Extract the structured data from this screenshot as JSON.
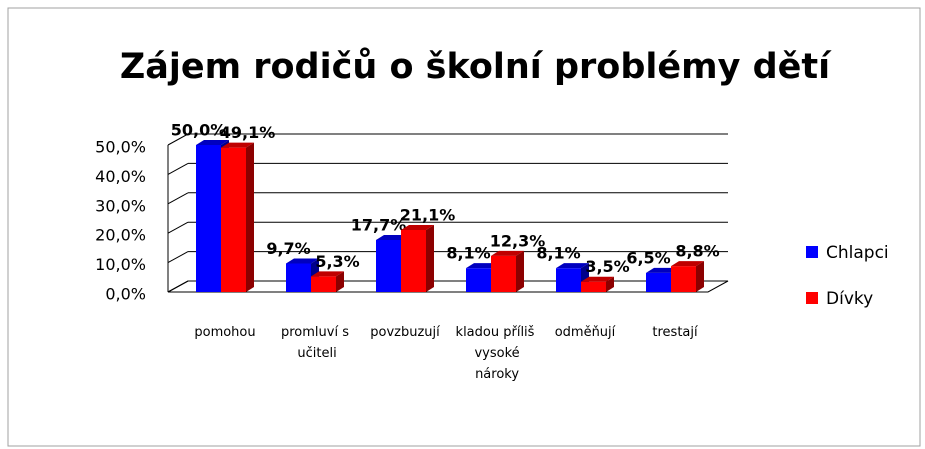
{
  "chart_data": {
    "type": "bar3d",
    "title": "Zájem rodičů o školní problémy dětí",
    "categories": [
      "pomohou",
      "promluví s učiteli",
      "povzbuzují",
      "kladou příliš vysoké nároky",
      "odměňují",
      "trestají"
    ],
    "series": [
      {
        "name": "Chlapci",
        "color": "#0000ff",
        "values": [
          50.0,
          9.7,
          17.7,
          8.1,
          8.1,
          6.5
        ],
        "value_labels": [
          "50,0%",
          "9,7%",
          "17,7%",
          "8,1%",
          "8,1%",
          "6,5%"
        ]
      },
      {
        "name": "Dívky",
        "color": "#ff0000",
        "values": [
          49.1,
          5.3,
          21.1,
          12.3,
          3.5,
          8.8
        ],
        "value_labels": [
          "49,1%",
          "5,3%",
          "21,1%",
          "12,3%",
          "3,5%",
          "8,8%"
        ]
      }
    ],
    "ylim": [
      0,
      50
    ],
    "yticks": [
      {
        "value": 0,
        "label": "0,0%"
      },
      {
        "value": 10,
        "label": "10,0%"
      },
      {
        "value": 20,
        "label": "20,0%"
      },
      {
        "value": 30,
        "label": "30,0%"
      },
      {
        "value": 40,
        "label": "40,0%"
      },
      {
        "value": 50,
        "label": "50,0%"
      }
    ],
    "grid": true,
    "legend": "right"
  }
}
